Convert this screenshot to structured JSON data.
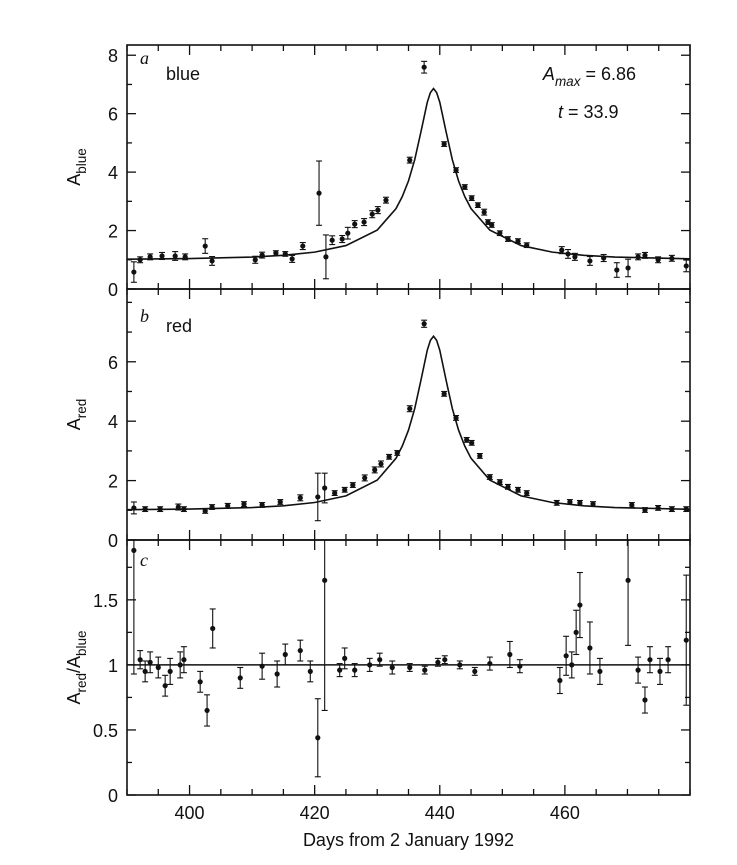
{
  "chart_data": [
    {
      "type": "scatter",
      "panel_letter": "a",
      "label": "blue",
      "y_label": [
        {
          "text": "A"
        },
        {
          "text": "blue",
          "sub": true
        }
      ],
      "annotations": [
        [
          {
            "text": "A",
            "italic": true
          },
          {
            "text": "max",
            "sub": true,
            "italic": true
          },
          {
            "text": " = 6.86"
          }
        ],
        [
          {
            "text": "t",
            "italic": true
          },
          {
            "text": " = 33.9"
          }
        ]
      ],
      "xlim": [
        390,
        480
      ],
      "xticks": [
        400,
        420,
        440,
        460
      ],
      "xminorticks": [
        390,
        395,
        405,
        410,
        415,
        425,
        430,
        435,
        445,
        450,
        455,
        465,
        470,
        475,
        480
      ],
      "ylim": [
        0,
        8.35
      ],
      "yticks": [
        0,
        2,
        4,
        6,
        8
      ],
      "yminorticks": [
        1,
        3,
        5,
        7
      ],
      "x": [
        391.1,
        392.1,
        393.7,
        395.6,
        397.7,
        399.3,
        402.5,
        403.6,
        410.5,
        411.6,
        413.8,
        415.3,
        416.4,
        418.1,
        420.7,
        421.8,
        422.8,
        424.4,
        425.3,
        426.4,
        427.9,
        429.2,
        430.1,
        431.4,
        435.2,
        437.5,
        440.7,
        442.6,
        444.0,
        445.1,
        446.1,
        447.1,
        447.7,
        448.3,
        449.6,
        450.9,
        452.5,
        453.9,
        459.5,
        460.5,
        461.6,
        464.0,
        466.2,
        468.3,
        470.1,
        471.7,
        472.8,
        474.9,
        477.1,
        479.4
      ],
      "values": [
        0.58,
        1.0,
        1.1,
        1.13,
        1.13,
        1.1,
        1.47,
        0.96,
        1.0,
        1.16,
        1.23,
        1.2,
        1.03,
        1.47,
        3.28,
        1.1,
        1.67,
        1.71,
        1.91,
        2.22,
        2.29,
        2.56,
        2.7,
        3.04,
        4.41,
        7.59,
        4.96,
        4.07,
        3.49,
        3.11,
        2.87,
        2.63,
        2.29,
        2.19,
        1.91,
        1.71,
        1.64,
        1.5,
        1.33,
        1.2,
        1.1,
        0.96,
        1.06,
        0.65,
        0.72,
        1.1,
        1.15,
        1.0,
        1.05,
        0.79
      ],
      "errors": [
        0.35,
        0.1,
        0.1,
        0.12,
        0.15,
        0.1,
        0.25,
        0.15,
        0.12,
        0.1,
        0.08,
        0.08,
        0.12,
        0.12,
        1.1,
        0.75,
        0.15,
        0.12,
        0.2,
        0.12,
        0.12,
        0.12,
        0.12,
        0.1,
        0.1,
        0.2,
        0.08,
        0.08,
        0.08,
        0.08,
        0.08,
        0.1,
        0.08,
        0.08,
        0.08,
        0.08,
        0.08,
        0.08,
        0.12,
        0.15,
        0.12,
        0.15,
        0.12,
        0.25,
        0.3,
        0.1,
        0.1,
        0.1,
        0.1,
        0.2
      ],
      "fit": {
        "x": [
          390,
          400,
          410,
          415,
          420,
          425,
          430,
          433,
          434,
          435,
          436,
          437,
          438,
          438.5,
          439,
          439.5,
          440,
          441,
          442,
          443,
          444,
          445,
          448,
          453,
          458,
          463,
          468,
          480
        ],
        "values": [
          1.019,
          1.04,
          1.093,
          1.152,
          1.262,
          1.486,
          2.016,
          2.75,
          3.16,
          3.7,
          4.43,
          5.39,
          6.39,
          6.72,
          6.86,
          6.72,
          6.39,
          5.39,
          4.43,
          3.7,
          3.16,
          2.75,
          2.016,
          1.486,
          1.262,
          1.152,
          1.093,
          1.034
        ]
      }
    },
    {
      "type": "scatter",
      "panel_letter": "b",
      "label": "red",
      "y_label": [
        {
          "text": "A"
        },
        {
          "text": "red",
          "sub": true
        }
      ],
      "xlim": [
        390,
        480
      ],
      "xticks": [
        400,
        420,
        440,
        460
      ],
      "xminorticks": [
        390,
        395,
        405,
        410,
        415,
        425,
        430,
        435,
        445,
        450,
        455,
        465,
        470,
        475,
        480
      ],
      "ylim": [
        0,
        8.45
      ],
      "yticks": [
        0,
        2,
        4,
        6
      ],
      "yminorticks": [
        1,
        3,
        5,
        7,
        8
      ],
      "x": [
        391.1,
        392.9,
        395.3,
        398.2,
        399.1,
        402.5,
        403.6,
        406.1,
        408.7,
        411.6,
        414.5,
        417.7,
        420.5,
        421.6,
        423.2,
        424.8,
        426.1,
        428.0,
        429.6,
        430.6,
        431.9,
        433.2,
        435.2,
        437.5,
        440.7,
        442.6,
        444.3,
        445.1,
        446.4,
        448.0,
        449.6,
        450.9,
        452.5,
        453.9,
        458.7,
        460.8,
        462.4,
        464.5,
        470.7,
        472.8,
        474.9,
        477.1,
        479.4
      ],
      "values": [
        1.08,
        1.04,
        1.04,
        1.11,
        1.04,
        0.98,
        1.11,
        1.15,
        1.21,
        1.18,
        1.28,
        1.42,
        1.45,
        1.75,
        1.58,
        1.69,
        1.85,
        2.09,
        2.36,
        2.56,
        2.8,
        2.93,
        4.42,
        7.28,
        4.92,
        4.11,
        3.37,
        3.27,
        2.83,
        2.12,
        1.95,
        1.79,
        1.69,
        1.58,
        1.25,
        1.28,
        1.25,
        1.21,
        1.18,
        1.01,
        1.08,
        1.04,
        1.04
      ],
      "errors": [
        0.2,
        0.08,
        0.08,
        0.1,
        0.08,
        0.08,
        0.08,
        0.08,
        0.08,
        0.08,
        0.08,
        0.1,
        0.8,
        0.5,
        0.08,
        0.08,
        0.08,
        0.1,
        0.1,
        0.1,
        0.08,
        0.08,
        0.1,
        0.12,
        0.08,
        0.08,
        0.08,
        0.08,
        0.08,
        0.08,
        0.08,
        0.08,
        0.08,
        0.08,
        0.08,
        0.08,
        0.08,
        0.08,
        0.08,
        0.08,
        0.08,
        0.08,
        0.08
      ],
      "fit": {
        "x": [
          390,
          400,
          410,
          415,
          420,
          425,
          430,
          433,
          434,
          435,
          436,
          437,
          438,
          438.5,
          439,
          439.5,
          440,
          441,
          442,
          443,
          444,
          445,
          448,
          453,
          458,
          463,
          468,
          480
        ],
        "values": [
          1.019,
          1.04,
          1.093,
          1.152,
          1.262,
          1.486,
          2.016,
          2.75,
          3.16,
          3.7,
          4.43,
          5.39,
          6.39,
          6.72,
          6.86,
          6.72,
          6.39,
          5.39,
          4.43,
          3.7,
          3.16,
          2.75,
          2.016,
          1.486,
          1.262,
          1.152,
          1.093,
          1.034
        ]
      }
    },
    {
      "type": "scatter",
      "panel_letter": "c",
      "y_label": [
        {
          "text": "A"
        },
        {
          "text": "red",
          "sub": true
        },
        {
          "text": "/A"
        },
        {
          "text": "blue",
          "sub": true
        }
      ],
      "x_label": "Days from 2 January 1992",
      "xlim": [
        390,
        480
      ],
      "xticks": [
        400,
        420,
        440,
        460
      ],
      "xminorticks": [
        390,
        395,
        405,
        410,
        415,
        425,
        430,
        435,
        445,
        450,
        455,
        465,
        470,
        475,
        480
      ],
      "ylim": [
        0,
        1.96
      ],
      "yticks": [
        0,
        0.5,
        1,
        1.5
      ],
      "yminorticks": [
        0.25,
        0.75,
        1.25,
        1.75
      ],
      "hline": 1,
      "x": [
        391.1,
        392.1,
        392.9,
        393.7,
        395.0,
        396.1,
        396.9,
        398.5,
        399.1,
        401.7,
        402.8,
        403.7,
        408.1,
        411.6,
        414.0,
        415.3,
        417.7,
        419.3,
        420.5,
        421.6,
        424.0,
        424.8,
        426.4,
        428.8,
        430.4,
        432.4,
        435.2,
        437.6,
        439.7,
        440.8,
        443.2,
        445.6,
        448.0,
        451.2,
        452.8,
        459.2,
        460.2,
        461.1,
        461.8,
        462.4,
        464.0,
        465.6,
        470.1,
        471.7,
        472.8,
        473.6,
        475.2,
        476.5,
        479.4
      ],
      "values": [
        1.88,
        1.04,
        0.95,
        1.02,
        0.98,
        0.84,
        0.95,
        1.0,
        1.04,
        0.87,
        0.65,
        1.28,
        0.9,
        0.99,
        0.93,
        1.08,
        1.11,
        0.95,
        0.44,
        1.65,
        0.96,
        1.05,
        0.96,
        1.0,
        1.04,
        0.98,
        0.98,
        0.96,
        1.02,
        1.04,
        1.0,
        0.95,
        1.01,
        1.08,
        0.99,
        0.88,
        1.07,
        1.0,
        1.25,
        1.46,
        1.13,
        0.95,
        1.65,
        0.96,
        0.73,
        1.04,
        0.95,
        1.04,
        1.19
      ],
      "errors": [
        0.95,
        0.07,
        0.08,
        0.08,
        0.08,
        0.08,
        0.1,
        0.1,
        0.1,
        0.08,
        0.12,
        0.15,
        0.08,
        0.1,
        0.1,
        0.08,
        0.08,
        0.08,
        0.3,
        1.0,
        0.05,
        0.08,
        0.05,
        0.05,
        0.05,
        0.05,
        0.03,
        0.03,
        0.03,
        0.03,
        0.03,
        0.03,
        0.05,
        0.1,
        0.05,
        0.1,
        0.15,
        0.1,
        0.17,
        0.25,
        0.2,
        0.1,
        0.5,
        0.1,
        0.1,
        0.1,
        0.1,
        0.1,
        0.5
      ]
    }
  ]
}
